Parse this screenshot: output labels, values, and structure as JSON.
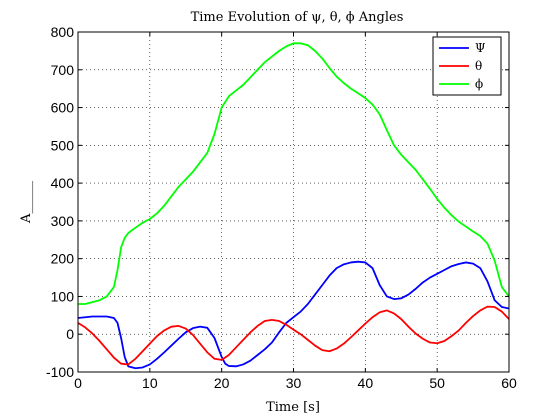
{
  "chart_data": {
    "type": "line",
    "title": "Time Evolution of ψ, θ, ϕ Angles",
    "xlabel": "Time [s]",
    "ylabel": "A_____",
    "xlim": [
      0,
      60
    ],
    "ylim": [
      -100,
      800
    ],
    "xticks": [
      0,
      10,
      20,
      30,
      40,
      50,
      60
    ],
    "yticks": [
      -100,
      0,
      100,
      200,
      300,
      400,
      500,
      600,
      700,
      800
    ],
    "grid": true,
    "legend_position": "top-right",
    "series": [
      {
        "name": "Ψ",
        "color": "#0000ff",
        "x": [
          0,
          2,
          4,
          5,
          5.5,
          6,
          6.5,
          7,
          8,
          9,
          10,
          11,
          12,
          13,
          14,
          15,
          16,
          17,
          18,
          19,
          20,
          20.5,
          21,
          22,
          23,
          24,
          25,
          26,
          27,
          28,
          29,
          30,
          31,
          32,
          33,
          34,
          35,
          36,
          37,
          38,
          39,
          40,
          41,
          42,
          43,
          44,
          45,
          46,
          47,
          48,
          49,
          50,
          51,
          52,
          53,
          54,
          55,
          56,
          57,
          58,
          59,
          60
        ],
        "y": [
          43,
          47,
          47,
          43,
          30,
          -10,
          -60,
          -85,
          -90,
          -88,
          -80,
          -65,
          -48,
          -30,
          -12,
          5,
          16,
          20,
          17,
          -10,
          -60,
          -78,
          -84,
          -85,
          -80,
          -70,
          -55,
          -40,
          -22,
          5,
          30,
          45,
          60,
          80,
          105,
          130,
          155,
          175,
          185,
          190,
          192,
          190,
          175,
          130,
          100,
          93,
          95,
          105,
          120,
          137,
          150,
          160,
          170,
          180,
          186,
          190,
          187,
          175,
          140,
          90,
          72,
          68
        ]
      },
      {
        "name": "θ",
        "color": "#ff0000",
        "x": [
          0,
          1,
          2,
          3,
          4,
          5,
          6,
          7,
          8,
          9,
          10,
          11,
          12,
          13,
          14,
          15,
          16,
          17,
          18,
          19,
          20,
          21,
          22,
          23,
          24,
          25,
          26,
          27,
          28,
          29,
          30,
          31,
          32,
          33,
          34,
          35,
          36,
          37,
          38,
          39,
          40,
          41,
          42,
          43,
          44,
          45,
          46,
          47,
          48,
          49,
          50,
          51,
          52,
          53,
          54,
          55,
          56,
          57,
          58,
          59,
          60
        ],
        "y": [
          30,
          18,
          2,
          -18,
          -40,
          -62,
          -78,
          -80,
          -65,
          -45,
          -25,
          -5,
          10,
          20,
          22,
          15,
          -2,
          -25,
          -48,
          -65,
          -68,
          -55,
          -35,
          -15,
          5,
          22,
          35,
          38,
          35,
          25,
          12,
          0,
          -15,
          -30,
          -42,
          -45,
          -38,
          -25,
          -8,
          10,
          28,
          45,
          58,
          63,
          55,
          40,
          20,
          2,
          -12,
          -22,
          -24,
          -18,
          -5,
          10,
          30,
          48,
          63,
          73,
          72,
          60,
          40
        ]
      },
      {
        "name": "ϕ",
        "color": "#00ff00",
        "x": [
          0,
          1,
          2,
          3,
          4,
          5,
          5.5,
          6,
          6.5,
          7,
          8,
          9,
          10,
          11,
          12,
          13,
          14,
          15,
          16,
          17,
          18,
          19,
          20,
          21,
          22,
          23,
          24,
          25,
          26,
          27,
          28,
          29,
          30,
          31,
          32,
          33,
          34,
          35,
          36,
          37,
          38,
          39,
          40,
          41,
          42,
          43,
          44,
          45,
          46,
          47,
          48,
          49,
          50,
          51,
          52,
          53,
          54,
          55,
          56,
          57,
          58,
          59,
          60
        ],
        "y": [
          80,
          80,
          85,
          90,
          100,
          125,
          170,
          230,
          255,
          268,
          282,
          295,
          305,
          320,
          340,
          365,
          390,
          410,
          430,
          455,
          480,
          530,
          600,
          630,
          645,
          660,
          680,
          700,
          720,
          735,
          750,
          762,
          770,
          770,
          765,
          750,
          730,
          705,
          682,
          665,
          650,
          638,
          625,
          608,
          582,
          540,
          500,
          475,
          455,
          435,
          410,
          385,
          358,
          335,
          315,
          298,
          285,
          272,
          260,
          240,
          195,
          125,
          100
        ]
      }
    ]
  }
}
